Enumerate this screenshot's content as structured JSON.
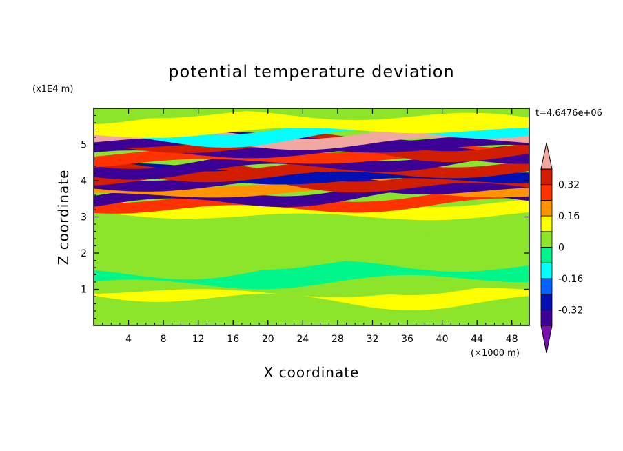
{
  "chart_data": {
    "type": "heatmap",
    "title": "potential temperature deviation",
    "xlabel": "X coordinate",
    "ylabel": "Z coordinate",
    "x_unit": "(×1000 m)",
    "y_unit": "(x1E4 m)",
    "time_label": "t=4.6476e+06",
    "xlim": [
      0,
      50
    ],
    "ylim": [
      0,
      6
    ],
    "x_ticks": [
      "4",
      "8",
      "12",
      "16",
      "20",
      "24",
      "28",
      "32",
      "36",
      "40",
      "44",
      "48"
    ],
    "y_ticks": [
      "1",
      "2",
      "3",
      "4",
      "5"
    ],
    "colorbar": {
      "levels": [
        -0.4,
        -0.32,
        -0.24,
        -0.16,
        -0.08,
        0,
        0.08,
        0.16,
        0.24,
        0.32,
        0.4
      ],
      "labels": [
        "0.32",
        "0.16",
        "0",
        "-0.16",
        "-0.32"
      ],
      "colors": [
        "#7a0fb0",
        "#3d0096",
        "#0010b4",
        "#0064ff",
        "#00ffff",
        "#00f58a",
        "#8ce52a",
        "#ffff00",
        "#ff9400",
        "#ff3200",
        "#d21e00",
        "#f0a8a0"
      ]
    },
    "bands": [
      {
        "z": 0.3,
        "value": 0.0
      },
      {
        "z": 0.6,
        "value": 0.06
      },
      {
        "z": 0.95,
        "value": 0.12
      },
      {
        "z": 1.2,
        "value": 0.04
      },
      {
        "z": 1.5,
        "value": -0.02
      },
      {
        "z": 1.85,
        "value": 0.06
      },
      {
        "z": 2.3,
        "value": 0.02
      },
      {
        "z": 2.7,
        "value": 0.06
      },
      {
        "z": 3.0,
        "value": 0.02
      },
      {
        "z": 3.25,
        "value": 0.1
      },
      {
        "z": 3.45,
        "value": 0.3
      },
      {
        "z": 3.6,
        "value": -0.36
      },
      {
        "z": 3.75,
        "value": 0.22
      },
      {
        "z": 3.9,
        "value": -0.34
      },
      {
        "z": 4.05,
        "value": 0.38
      },
      {
        "z": 4.2,
        "value": -0.3
      },
      {
        "z": 4.35,
        "value": 0.34
      },
      {
        "z": 4.5,
        "value": -0.36
      },
      {
        "z": 4.65,
        "value": 0.3
      },
      {
        "z": 4.8,
        "value": -0.38
      },
      {
        "z": 4.95,
        "value": 0.36
      },
      {
        "z": 5.1,
        "value": -0.34
      },
      {
        "z": 5.25,
        "value": 0.42
      },
      {
        "z": 5.4,
        "value": -0.12
      },
      {
        "z": 5.6,
        "value": 0.08
      },
      {
        "z": 5.95,
        "value": 0.06
      }
    ]
  }
}
